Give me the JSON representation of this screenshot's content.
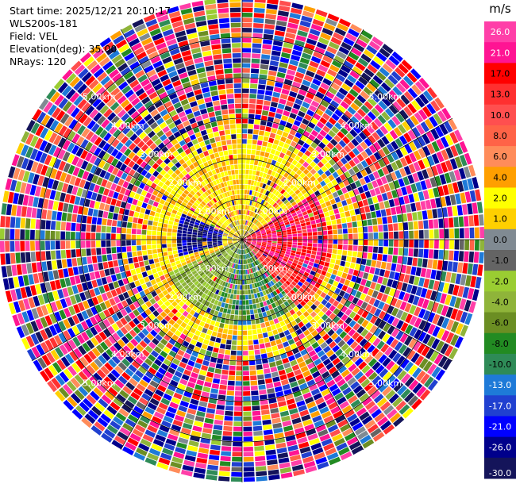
{
  "info": {
    "start_time": "Start time: 2025/12/21 20:10:17",
    "station": "WLS200s-181",
    "field": "Field: VEL",
    "elevation": "Elevation(deg): 35.00",
    "nrays": "NRays: 120"
  },
  "chart_data": {
    "type": "heatmap",
    "projection": "polar-ppi",
    "field": "VEL",
    "units": "m/s",
    "elevation_deg": 35.0,
    "n_rays": 120,
    "max_range_km": 6.0,
    "range_rings_km": [
      1.0,
      2.0,
      3.0,
      4.0,
      5.0
    ],
    "range_ring_labels": [
      "1.00km",
      "2.00km",
      "3.00km",
      "4.00km",
      "5.00km"
    ],
    "colorbar": {
      "title": "m/s",
      "ticks": [
        "26.0",
        "21.0",
        "17.0",
        "13.0",
        "10.0",
        "8.0",
        "6.0",
        "4.0",
        "2.0",
        "1.0",
        "0.0",
        "-1.0",
        "-2.0",
        "-4.0",
        "-6.0",
        "-8.0",
        "-10.0",
        "-13.0",
        "-17.0",
        "-21.0",
        "-26.0",
        "-30.0"
      ],
      "bins": [
        {
          "min": 26,
          "max": 30,
          "color": "#ff3fa8"
        },
        {
          "min": 21,
          "max": 26,
          "color": "#ff1493"
        },
        {
          "min": 17,
          "max": 21,
          "color": "#ff0000"
        },
        {
          "min": 13,
          "max": 17,
          "color": "#ff3030"
        },
        {
          "min": 10,
          "max": 13,
          "color": "#ff4f4f"
        },
        {
          "min": 8,
          "max": 10,
          "color": "#ff6347"
        },
        {
          "min": 6,
          "max": 8,
          "color": "#ff8c5a"
        },
        {
          "min": 4,
          "max": 6,
          "color": "#ff9f00"
        },
        {
          "min": 2,
          "max": 4,
          "color": "#ffff00"
        },
        {
          "min": 1,
          "max": 2,
          "color": "#ffd000"
        },
        {
          "min": 0,
          "max": 1,
          "color": "#808a92"
        },
        {
          "min": -1,
          "max": 0,
          "color": "#646464"
        },
        {
          "min": -2,
          "max": -1,
          "color": "#9acd32"
        },
        {
          "min": -4,
          "max": -2,
          "color": "#8fb43a"
        },
        {
          "min": -6,
          "max": -4,
          "color": "#6b8e23"
        },
        {
          "min": -8,
          "max": -6,
          "color": "#228b22"
        },
        {
          "min": -10,
          "max": -8,
          "color": "#2e8b57"
        },
        {
          "min": -13,
          "max": -10,
          "color": "#1e7ad8"
        },
        {
          "min": -17,
          "max": -13,
          "color": "#2040d0"
        },
        {
          "min": -21,
          "max": -17,
          "color": "#0000ff"
        },
        {
          "min": -26,
          "max": -21,
          "color": "#00008b"
        },
        {
          "min": -30,
          "max": -26,
          "color": "#14145a"
        }
      ]
    },
    "dominant_pattern": [
      {
        "sector": "east (approx. az 60-120)",
        "range_km": [
          0.0,
          2.2
        ],
        "velocity": "positive, 13 to 26 m/s"
      },
      {
        "sector": "south-southeast (approx. az 120-190)",
        "range_km": [
          0.0,
          2.2
        ],
        "velocity": "negative, -2 to -10 m/s"
      },
      {
        "sector": "west (approx. az 250-300)",
        "range_km": [
          0.5,
          1.6
        ],
        "velocity": "strongly negative, -21 to -30 m/s"
      },
      {
        "sector": "north/northeast and southwest",
        "range_km": [
          0.5,
          2.5
        ],
        "velocity": "weak positive, 1 to 6 m/s"
      },
      {
        "sector": "all directions",
        "range_km": [
          3.0,
          6.0
        ],
        "velocity": "noise, full range -30 to 30 m/s"
      }
    ]
  }
}
